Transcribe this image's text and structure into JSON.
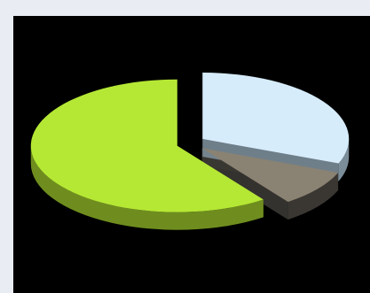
{
  "window": {
    "background": "#e9edf3",
    "plot_background": "#000000"
  },
  "chart_data": {
    "type": "pie",
    "style": "3d-exploded",
    "title": "",
    "legend": "none",
    "data_labels": "none",
    "slices": [
      {
        "value": 31,
        "color": "#d6ecfb",
        "side_color": "#7b8d99"
      },
      {
        "value": 9,
        "color": "#8a8272",
        "side_color": "#3a3733"
      },
      {
        "value": 60,
        "color": "#b5e834",
        "side_color": "#6f8d1e"
      }
    ]
  }
}
